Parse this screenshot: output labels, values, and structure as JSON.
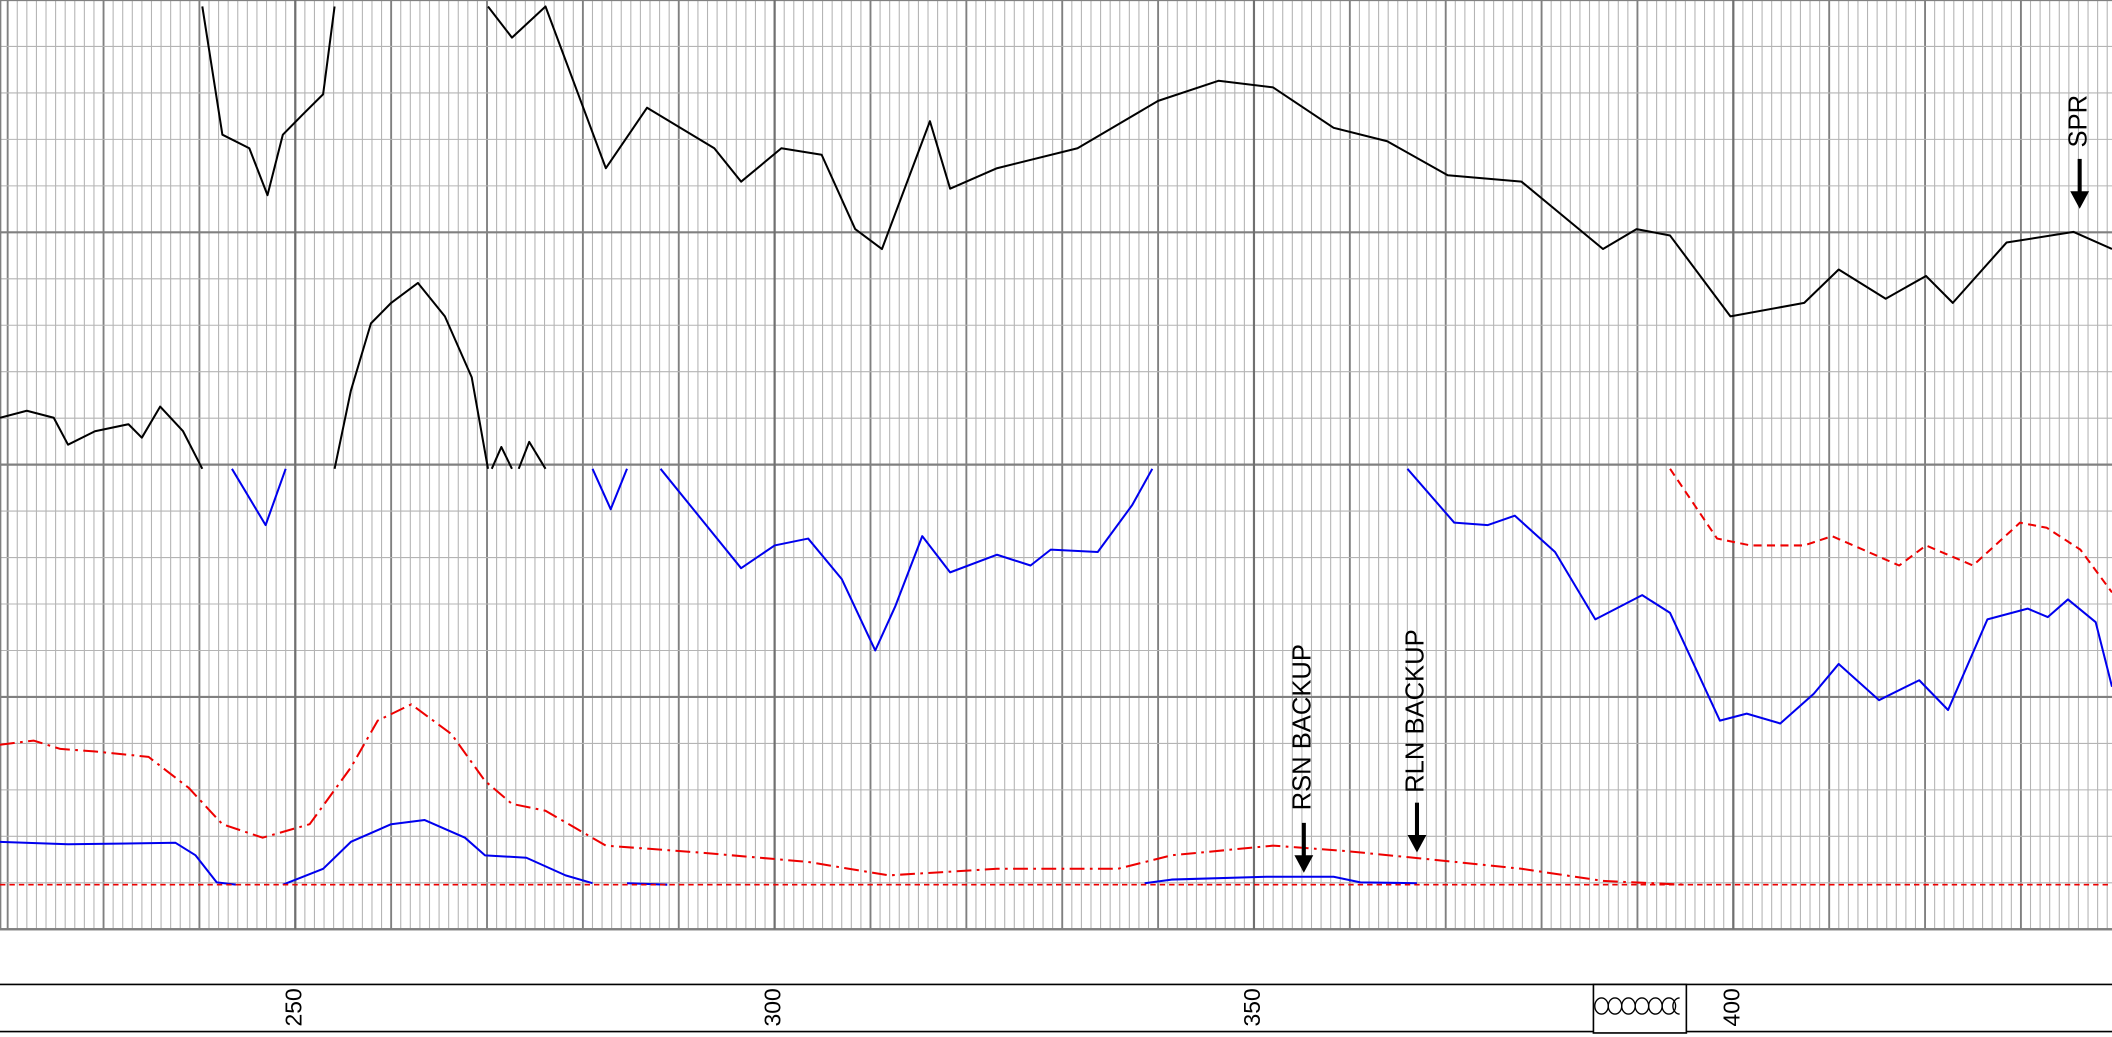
{
  "chart_data": {
    "type": "line",
    "xlim": [
      219.2,
      439.5
    ],
    "ylim": [
      0,
      20
    ],
    "xticks": [
      250,
      300,
      350,
      400
    ],
    "grid": true,
    "annotations": [
      "SPR",
      "RSN BACKUP",
      "RLN BACKUP"
    ],
    "series": [
      {
        "color": "#000000",
        "style": "solid",
        "x": [
          240.3,
          242.4,
          245.2,
          247.1,
          248.7,
          250.8,
          252.9,
          254.1,
          null,
          270.1,
          272.6,
          276.1,
          282.4,
          286.7,
          293.7,
          296.5,
          300.7,
          304.9,
          308.4,
          311.2,
          316.2,
          318.3,
          323.2,
          331.6,
          340.0,
          346.3,
          352.0,
          358.3,
          363.9,
          370.2,
          377.9,
          386.4,
          389.9,
          393.4,
          399.7,
          407.4,
          411.0,
          415.9,
          420.1,
          422.9,
          428.5,
          435.5,
          439.5
        ],
        "values": [
          19.86,
          17.1,
          16.81,
          15.8,
          17.1,
          17.54,
          17.97,
          19.86,
          null,
          19.86,
          19.19,
          19.86,
          16.38,
          17.68,
          16.81,
          16.09,
          16.81,
          16.67,
          15.07,
          14.64,
          17.39,
          15.94,
          16.38,
          16.81,
          17.83,
          18.26,
          18.12,
          17.25,
          16.96,
          16.23,
          16.09,
          14.64,
          15.07,
          14.93,
          13.19,
          13.48,
          14.2,
          13.57,
          14.06,
          13.48,
          14.78,
          15.01,
          14.64
        ]
      },
      {
        "color": "#000000",
        "style": "solid",
        "x": [
          219.2,
          222.0,
          224.8,
          226.3,
          229.1,
          232.6,
          234.0,
          235.9,
          238.3,
          240.3,
          null,
          254.1,
          255.8,
          257.9,
          260.0,
          262.8,
          265.6,
          268.4,
          270.1,
          null,
          270.5,
          271.5,
          272.6,
          null,
          273.3,
          274.4,
          276.1
        ],
        "values": [
          11.01,
          11.16,
          11.01,
          10.43,
          10.72,
          10.87,
          10.58,
          11.25,
          10.72,
          9.91,
          null,
          9.91,
          11.59,
          13.04,
          13.48,
          13.91,
          13.19,
          11.88,
          9.91,
          null,
          9.91,
          10.38,
          9.91,
          null,
          9.91,
          10.49,
          9.91
        ]
      },
      {
        "color": "#0000ee",
        "style": "solid",
        "x": [
          243.4,
          246.9,
          249.0,
          null,
          281.0,
          282.9,
          284.6,
          null,
          288.1,
          292.3,
          296.5,
          300.0,
          303.5,
          307.0,
          310.5,
          312.6,
          315.4,
          318.3,
          323.2,
          326.7,
          328.8,
          333.7,
          337.3,
          339.4,
          null,
          366.0,
          370.9,
          374.4,
          377.2,
          381.4,
          385.6,
          390.5,
          393.4,
          398.6,
          401.4,
          404.9,
          408.4,
          411.0,
          415.2,
          419.4,
          422.4,
          426.5,
          430.7,
          432.8,
          434.9,
          437.8,
          439.5
        ],
        "values": [
          9.91,
          8.7,
          9.91,
          null,
          9.91,
          9.04,
          9.91,
          null,
          9.91,
          8.84,
          7.77,
          8.26,
          8.41,
          7.54,
          6.0,
          6.96,
          8.46,
          7.68,
          8.06,
          7.83,
          8.17,
          8.12,
          9.13,
          9.91,
          null,
          9.91,
          8.75,
          8.7,
          8.9,
          8.12,
          6.67,
          7.19,
          6.81,
          4.49,
          4.64,
          4.43,
          5.07,
          5.71,
          4.93,
          5.36,
          4.72,
          6.67,
          6.9,
          6.72,
          7.1,
          6.61,
          5.22
        ]
      },
      {
        "color": "#ee0000",
        "style": "dashed",
        "x": [
          393.4,
          398.3,
          401.8,
          407.4,
          410.3,
          417.3,
          420.1,
          425.0,
          429.9,
          432.7,
          436.2,
          439.5
        ],
        "values": [
          9.91,
          8.41,
          8.26,
          8.26,
          8.46,
          7.83,
          8.26,
          7.83,
          8.75,
          8.64,
          8.17,
          7.25
        ]
      },
      {
        "color": "#ee0000",
        "style": "dashdot",
        "x": [
          219.2,
          222.7,
          225.5,
          229.0,
          234.7,
          238.9,
          242.4,
          246.6,
          251.5,
          255.8,
          258.6,
          262.1,
          266.3,
          269.8,
          272.6,
          276.1,
          282.4,
          292.3,
          303.5,
          311.9,
          323.2,
          335.8,
          341.4,
          352.0,
          359.7,
          368.1,
          377.9,
          386.4,
          394.8
        ],
        "values": [
          3.97,
          4.06,
          3.88,
          3.83,
          3.71,
          3.04,
          2.26,
          1.97,
          2.26,
          3.48,
          4.49,
          4.84,
          4.2,
          3.19,
          2.7,
          2.55,
          1.8,
          1.65,
          1.45,
          1.16,
          1.3,
          1.3,
          1.59,
          1.8,
          1.68,
          1.51,
          1.3,
          1.04,
          0.96
        ]
      },
      {
        "color": "#0000ee",
        "style": "solid",
        "x": [
          219.2,
          226.3,
          237.5,
          239.6,
          241.8,
          243.8,
          null,
          248.7,
          252.9,
          255.8,
          260.0,
          263.5,
          267.7,
          269.8,
          274.1,
          278.2,
          281.0,
          null,
          284.6,
          288.8,
          null,
          338.6,
          341.4,
          351.3,
          358.3,
          361.1,
          367.0
        ],
        "values": [
          1.88,
          1.83,
          1.86,
          1.59,
          1.01,
          0.96,
          null,
          0.96,
          1.3,
          1.88,
          2.26,
          2.35,
          1.97,
          1.59,
          1.54,
          1.16,
          0.99,
          null,
          0.99,
          0.96,
          null,
          0.99,
          1.07,
          1.13,
          1.13,
          1.01,
          0.99
        ]
      },
      {
        "color": "#ee0000",
        "style": "dotted",
        "x": [
          219.2,
          439.5
        ],
        "values": [
          0.96,
          0.96
        ]
      }
    ]
  }
}
